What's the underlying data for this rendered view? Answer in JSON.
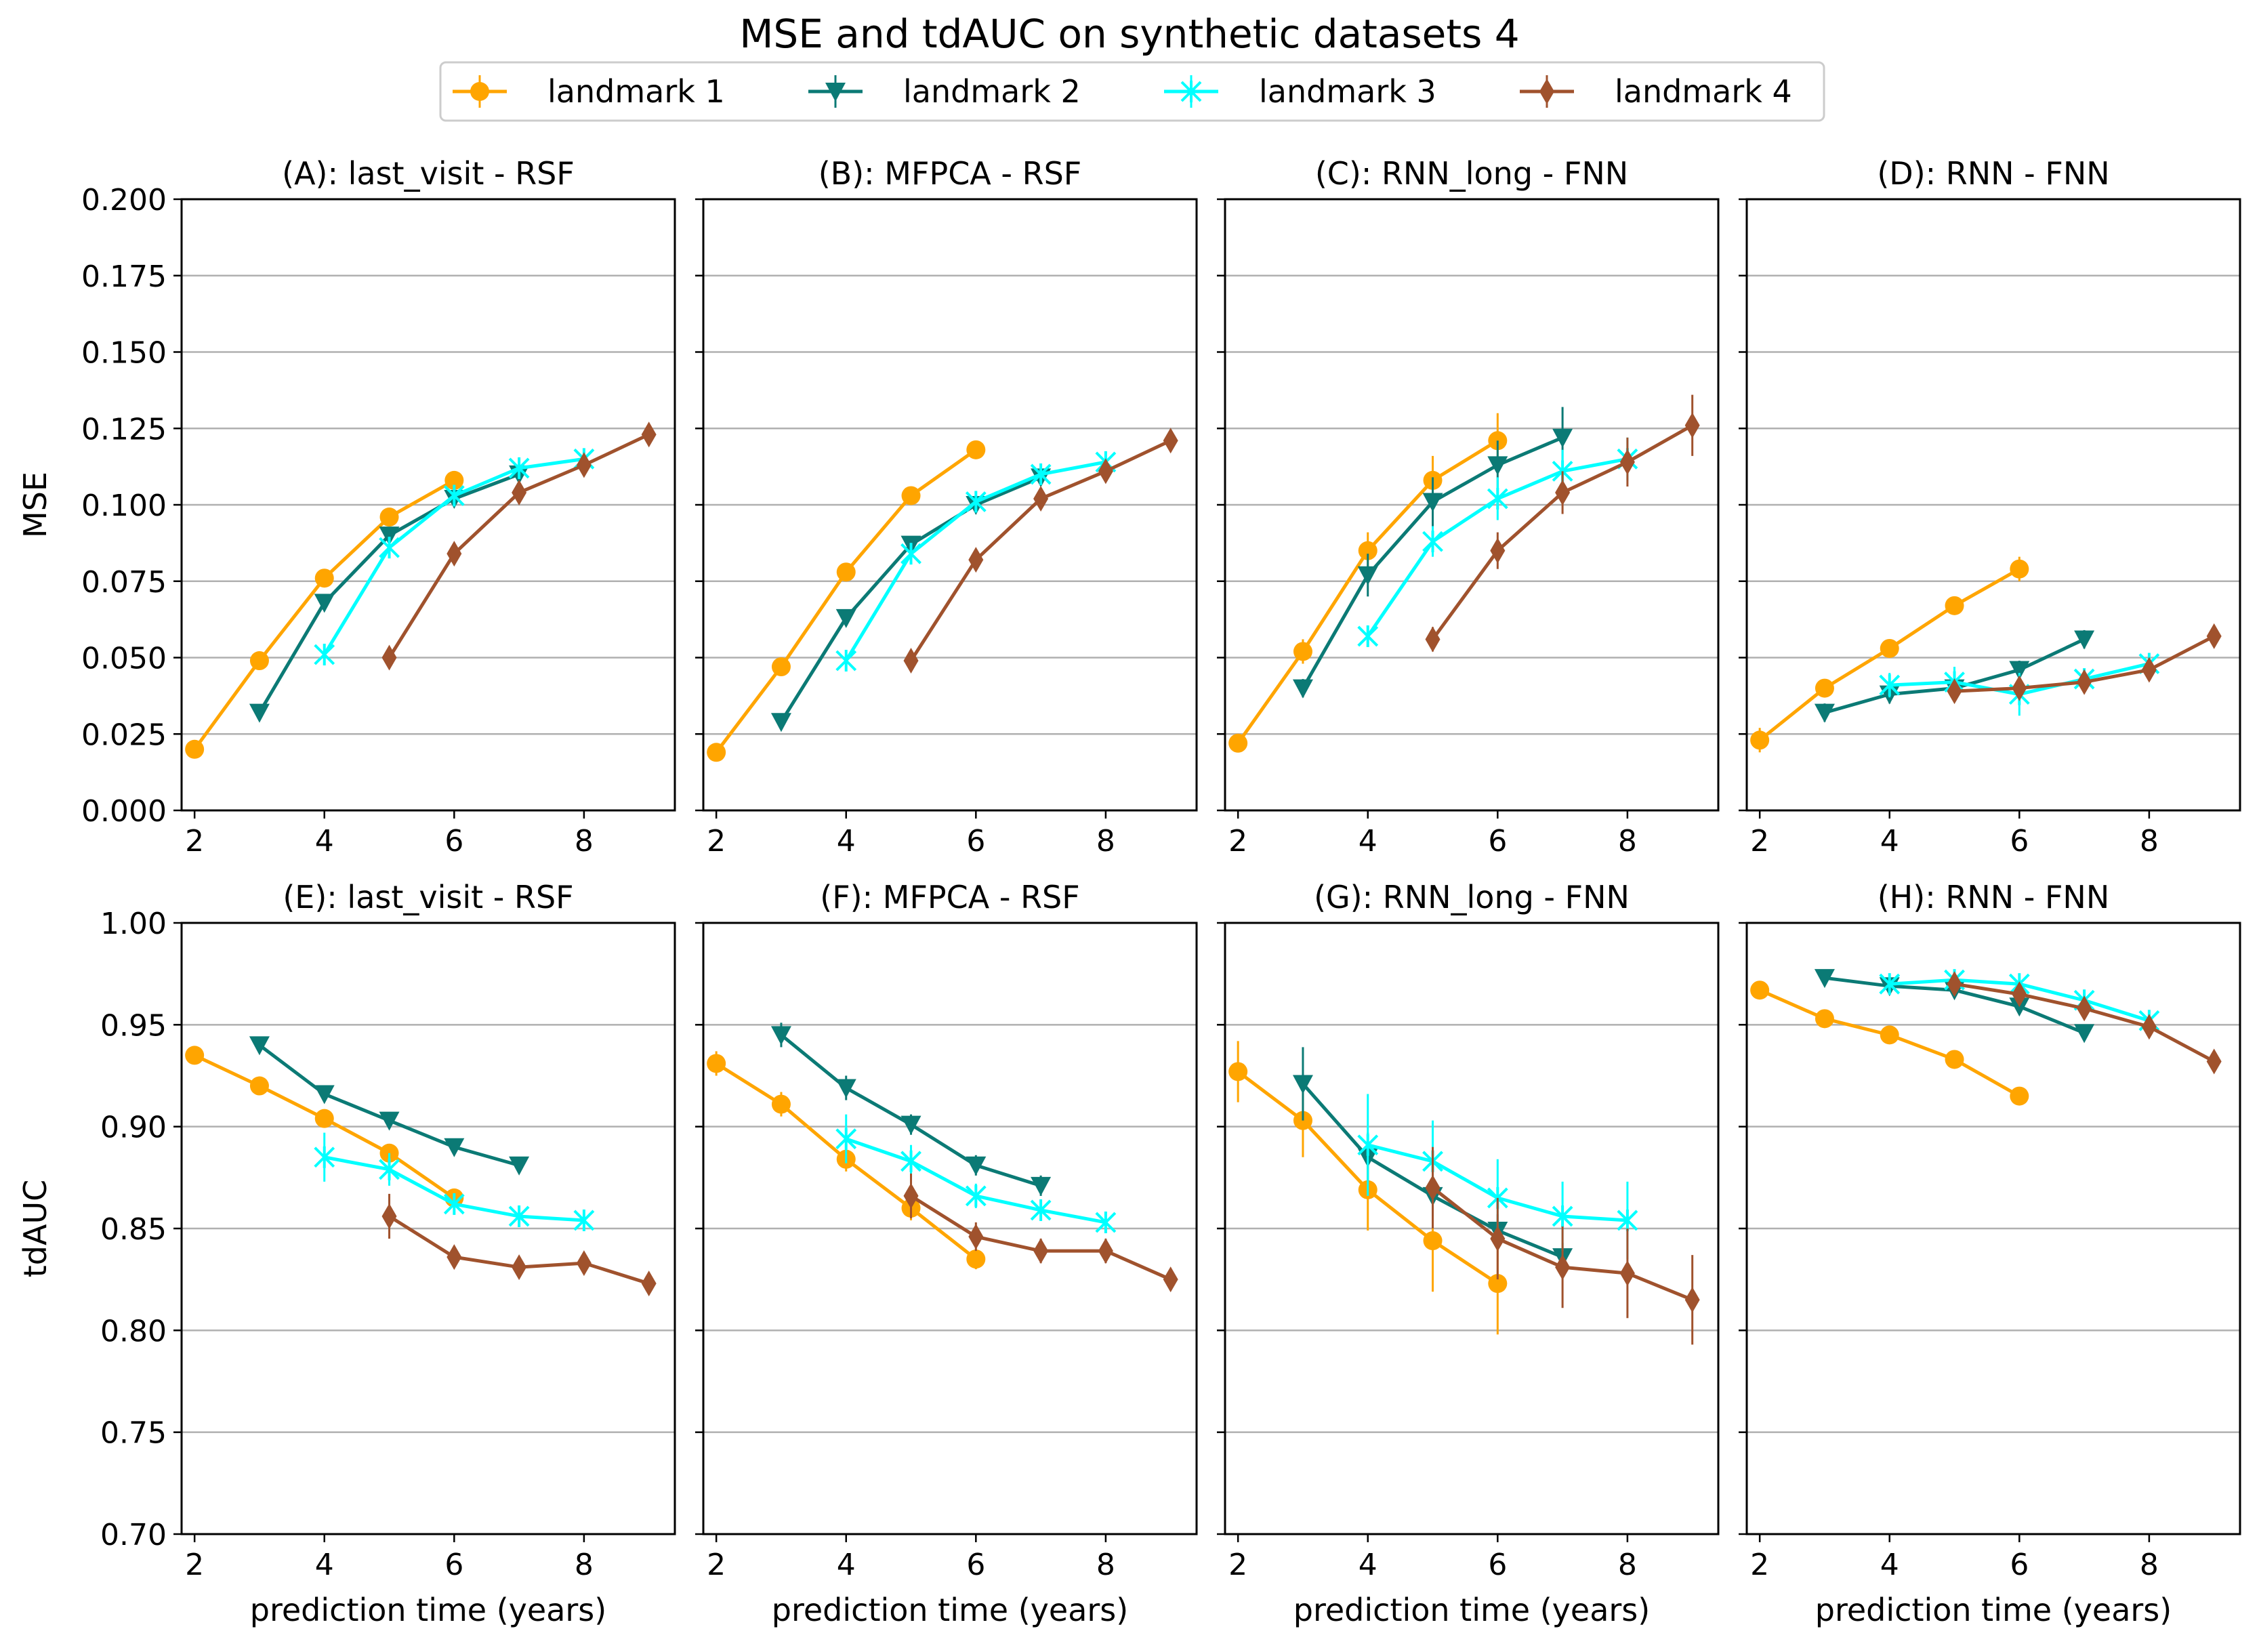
{
  "figure_title": "MSE and tdAUC on synthetic datasets 4",
  "legend": [
    {
      "label": "landmark 1",
      "color": "#FFA500",
      "marker": "circle"
    },
    {
      "label": "landmark 2",
      "color": "#0B7A75",
      "marker": "triangle-down"
    },
    {
      "label": "landmark 3",
      "color": "#00FFFF",
      "marker": "x-star"
    },
    {
      "label": "landmark 4",
      "color": "#A0522D",
      "marker": "diamond"
    }
  ],
  "chart_data": [
    {
      "type": "line",
      "title": "(A): last_visit - RSF",
      "xlabel": "",
      "ylabel": "MSE",
      "xlim": [
        1.8,
        9.4
      ],
      "ylim": [
        0.0,
        0.2
      ],
      "xticks": [
        "2",
        "4",
        "6",
        "8"
      ],
      "yticks": [
        "0.000",
        "0.025",
        "0.050",
        "0.075",
        "0.100",
        "0.125",
        "0.150",
        "0.175",
        "0.200"
      ],
      "grid": "y",
      "series": [
        {
          "name": "landmark 1",
          "x": [
            2,
            3,
            4,
            5,
            6
          ],
          "y": [
            0.02,
            0.049,
            0.076,
            0.096,
            0.108
          ],
          "err": [
            0.002,
            0.002,
            0.002,
            0.002,
            0.002
          ]
        },
        {
          "name": "landmark 2",
          "x": [
            3,
            4,
            5,
            6,
            7
          ],
          "y": [
            0.032,
            0.068,
            0.09,
            0.102,
            0.11
          ],
          "err": [
            0.002,
            0.002,
            0.002,
            0.002,
            0.002
          ]
        },
        {
          "name": "landmark 3",
          "x": [
            4,
            5,
            6,
            7,
            8
          ],
          "y": [
            0.051,
            0.086,
            0.103,
            0.112,
            0.115
          ],
          "err": [
            0.002,
            0.002,
            0.002,
            0.002,
            0.002
          ]
        },
        {
          "name": "landmark 4",
          "x": [
            5,
            6,
            7,
            8,
            9
          ],
          "y": [
            0.05,
            0.084,
            0.104,
            0.113,
            0.123
          ],
          "err": [
            0.002,
            0.002,
            0.002,
            0.002,
            0.002
          ]
        }
      ]
    },
    {
      "type": "line",
      "title": "(B): MFPCA - RSF",
      "xlabel": "",
      "ylabel": "",
      "xlim": [
        1.8,
        9.4
      ],
      "ylim": [
        0.0,
        0.2
      ],
      "xticks": [
        "2",
        "4",
        "6",
        "8"
      ],
      "yticks": [],
      "grid": "y",
      "series": [
        {
          "name": "landmark 1",
          "x": [
            2,
            3,
            4,
            5,
            6
          ],
          "y": [
            0.019,
            0.047,
            0.078,
            0.103,
            0.118
          ],
          "err": [
            0.002,
            0.002,
            0.002,
            0.002,
            0.002
          ]
        },
        {
          "name": "landmark 2",
          "x": [
            3,
            4,
            5,
            6,
            7
          ],
          "y": [
            0.029,
            0.063,
            0.087,
            0.1,
            0.109
          ],
          "err": [
            0.002,
            0.002,
            0.002,
            0.002,
            0.002
          ]
        },
        {
          "name": "landmark 3",
          "x": [
            4,
            5,
            6,
            7,
            8
          ],
          "y": [
            0.049,
            0.084,
            0.101,
            0.11,
            0.114
          ],
          "err": [
            0.002,
            0.002,
            0.002,
            0.002,
            0.002
          ]
        },
        {
          "name": "landmark 4",
          "x": [
            5,
            6,
            7,
            8,
            9
          ],
          "y": [
            0.049,
            0.082,
            0.102,
            0.111,
            0.121
          ],
          "err": [
            0.002,
            0.002,
            0.002,
            0.002,
            0.002
          ]
        }
      ]
    },
    {
      "type": "line",
      "title": "(C): RNN_long - FNN",
      "xlabel": "",
      "ylabel": "",
      "xlim": [
        1.8,
        9.4
      ],
      "ylim": [
        0.0,
        0.2
      ],
      "xticks": [
        "2",
        "4",
        "6",
        "8"
      ],
      "yticks": [],
      "grid": "y",
      "series": [
        {
          "name": "landmark 1",
          "x": [
            2,
            3,
            4,
            5,
            6
          ],
          "y": [
            0.022,
            0.052,
            0.085,
            0.108,
            0.121
          ],
          "err": [
            0.002,
            0.004,
            0.006,
            0.008,
            0.009
          ]
        },
        {
          "name": "landmark 2",
          "x": [
            3,
            4,
            5,
            6,
            7
          ],
          "y": [
            0.04,
            0.077,
            0.101,
            0.113,
            0.122
          ],
          "err": [
            0.003,
            0.007,
            0.008,
            0.008,
            0.01
          ]
        },
        {
          "name": "landmark 3",
          "x": [
            4,
            5,
            6,
            7,
            8
          ],
          "y": [
            0.057,
            0.088,
            0.102,
            0.111,
            0.115
          ],
          "err": [
            0.003,
            0.005,
            0.007,
            0.007,
            0.007
          ]
        },
        {
          "name": "landmark 4",
          "x": [
            5,
            6,
            7,
            8,
            9
          ],
          "y": [
            0.056,
            0.085,
            0.104,
            0.114,
            0.126
          ],
          "err": [
            0.004,
            0.006,
            0.007,
            0.008,
            0.01
          ]
        }
      ]
    },
    {
      "type": "line",
      "title": "(D): RNN - FNN",
      "xlabel": "",
      "ylabel": "",
      "xlim": [
        1.8,
        9.4
      ],
      "ylim": [
        0.0,
        0.2
      ],
      "xticks": [
        "2",
        "4",
        "6",
        "8"
      ],
      "yticks": [],
      "grid": "y",
      "series": [
        {
          "name": "landmark 1",
          "x": [
            2,
            3,
            4,
            5,
            6
          ],
          "y": [
            0.023,
            0.04,
            0.053,
            0.067,
            0.079
          ],
          "err": [
            0.004,
            0.003,
            0.003,
            0.003,
            0.004
          ]
        },
        {
          "name": "landmark 2",
          "x": [
            3,
            4,
            5,
            6,
            7
          ],
          "y": [
            0.032,
            0.038,
            0.04,
            0.046,
            0.056
          ],
          "err": [
            0.003,
            0.003,
            0.003,
            0.003,
            0.003
          ]
        },
        {
          "name": "landmark 3",
          "x": [
            4,
            5,
            6,
            7,
            8
          ],
          "y": [
            0.041,
            0.042,
            0.038,
            0.043,
            0.048
          ],
          "err": [
            0.004,
            0.005,
            0.007,
            0.003,
            0.003
          ]
        },
        {
          "name": "landmark 4",
          "x": [
            5,
            6,
            7,
            8,
            9
          ],
          "y": [
            0.039,
            0.04,
            0.042,
            0.046,
            0.057
          ],
          "err": [
            0.003,
            0.003,
            0.003,
            0.003,
            0.003
          ]
        }
      ]
    },
    {
      "type": "line",
      "title": "(E): last_visit - RSF",
      "xlabel": "prediction time (years)",
      "ylabel": "tdAUC",
      "xlim": [
        1.8,
        9.4
      ],
      "ylim": [
        0.7,
        1.0
      ],
      "xticks": [
        "2",
        "4",
        "6",
        "8"
      ],
      "yticks": [
        "0.70",
        "0.75",
        "0.80",
        "0.85",
        "0.90",
        "0.95",
        "1.00"
      ],
      "grid": "y",
      "series": [
        {
          "name": "landmark 1",
          "x": [
            2,
            3,
            4,
            5,
            6
          ],
          "y": [
            0.935,
            0.92,
            0.904,
            0.887,
            0.865
          ],
          "err": [
            0.003,
            0.003,
            0.004,
            0.003,
            0.003
          ]
        },
        {
          "name": "landmark 2",
          "x": [
            3,
            4,
            5,
            6,
            7
          ],
          "y": [
            0.94,
            0.916,
            0.903,
            0.89,
            0.881
          ],
          "err": [
            0.003,
            0.003,
            0.003,
            0.003,
            0.003
          ]
        },
        {
          "name": "landmark 3",
          "x": [
            4,
            5,
            6,
            7,
            8
          ],
          "y": [
            0.885,
            0.879,
            0.862,
            0.856,
            0.854
          ],
          "err": [
            0.012,
            0.008,
            0.004,
            0.003,
            0.003
          ]
        },
        {
          "name": "landmark 4",
          "x": [
            5,
            6,
            7,
            8,
            9
          ],
          "y": [
            0.856,
            0.836,
            0.831,
            0.833,
            0.823
          ],
          "err": [
            0.011,
            0.004,
            0.004,
            0.004,
            0.004
          ]
        }
      ]
    },
    {
      "type": "line",
      "title": "(F): MFPCA - RSF",
      "xlabel": "prediction time (years)",
      "ylabel": "",
      "xlim": [
        1.8,
        9.4
      ],
      "ylim": [
        0.7,
        1.0
      ],
      "xticks": [
        "2",
        "4",
        "6",
        "8"
      ],
      "yticks": [],
      "grid": "y",
      "series": [
        {
          "name": "landmark 1",
          "x": [
            2,
            3,
            4,
            5,
            6
          ],
          "y": [
            0.931,
            0.911,
            0.884,
            0.86,
            0.835
          ],
          "err": [
            0.006,
            0.006,
            0.006,
            0.006,
            0.005
          ]
        },
        {
          "name": "landmark 2",
          "x": [
            3,
            4,
            5,
            6,
            7
          ],
          "y": [
            0.945,
            0.919,
            0.901,
            0.881,
            0.871
          ],
          "err": [
            0.006,
            0.006,
            0.005,
            0.005,
            0.005
          ]
        },
        {
          "name": "landmark 3",
          "x": [
            4,
            5,
            6,
            7,
            8
          ],
          "y": [
            0.894,
            0.883,
            0.866,
            0.859,
            0.853
          ],
          "err": [
            0.012,
            0.008,
            0.006,
            0.004,
            0.004
          ]
        },
        {
          "name": "landmark 4",
          "x": [
            5,
            6,
            7,
            8,
            9
          ],
          "y": [
            0.866,
            0.846,
            0.839,
            0.839,
            0.825
          ],
          "err": [
            0.011,
            0.007,
            0.006,
            0.006,
            0.005
          ]
        }
      ]
    },
    {
      "type": "line",
      "title": "(G): RNN_long - FNN",
      "xlabel": "prediction time (years)",
      "ylabel": "",
      "xlim": [
        1.8,
        9.4
      ],
      "ylim": [
        0.7,
        1.0
      ],
      "xticks": [
        "2",
        "4",
        "6",
        "8"
      ],
      "yticks": [],
      "grid": "y",
      "series": [
        {
          "name": "landmark 1",
          "x": [
            2,
            3,
            4,
            5,
            6
          ],
          "y": [
            0.927,
            0.903,
            0.869,
            0.844,
            0.823
          ],
          "err": [
            0.015,
            0.018,
            0.02,
            0.025,
            0.025
          ]
        },
        {
          "name": "landmark 2",
          "x": [
            3,
            4,
            5,
            6,
            7
          ],
          "y": [
            0.921,
            0.885,
            0.866,
            0.849,
            0.836
          ],
          "err": [
            0.018,
            0.012,
            0.01,
            0.008,
            0.007
          ]
        },
        {
          "name": "landmark 3",
          "x": [
            4,
            5,
            6,
            7,
            8
          ],
          "y": [
            0.891,
            0.883,
            0.865,
            0.856,
            0.854
          ],
          "err": [
            0.025,
            0.02,
            0.019,
            0.017,
            0.019
          ]
        },
        {
          "name": "landmark 4",
          "x": [
            5,
            6,
            7,
            8,
            9
          ],
          "y": [
            0.87,
            0.845,
            0.831,
            0.828,
            0.815
          ],
          "err": [
            0.02,
            0.02,
            0.02,
            0.022,
            0.022
          ]
        }
      ]
    },
    {
      "type": "line",
      "title": "(H): RNN - FNN",
      "xlabel": "prediction time (years)",
      "ylabel": "",
      "xlim": [
        1.8,
        9.4
      ],
      "ylim": [
        0.7,
        1.0
      ],
      "xticks": [
        "2",
        "4",
        "6",
        "8"
      ],
      "yticks": [],
      "grid": "y",
      "series": [
        {
          "name": "landmark 1",
          "x": [
            2,
            3,
            4,
            5,
            6
          ],
          "y": [
            0.967,
            0.953,
            0.945,
            0.933,
            0.915
          ],
          "err": [
            0.002,
            0.002,
            0.002,
            0.002,
            0.002
          ]
        },
        {
          "name": "landmark 2",
          "x": [
            3,
            4,
            5,
            6,
            7
          ],
          "y": [
            0.973,
            0.969,
            0.967,
            0.959,
            0.946
          ],
          "err": [
            0.002,
            0.002,
            0.002,
            0.002,
            0.002
          ]
        },
        {
          "name": "landmark 3",
          "x": [
            4,
            5,
            6,
            7,
            8
          ],
          "y": [
            0.97,
            0.972,
            0.97,
            0.962,
            0.952
          ],
          "err": [
            0.003,
            0.003,
            0.003,
            0.002,
            0.002
          ]
        },
        {
          "name": "landmark 4",
          "x": [
            5,
            6,
            7,
            8,
            9
          ],
          "y": [
            0.97,
            0.965,
            0.958,
            0.949,
            0.932
          ],
          "err": [
            0.003,
            0.003,
            0.003,
            0.003,
            0.003
          ]
        }
      ]
    }
  ]
}
